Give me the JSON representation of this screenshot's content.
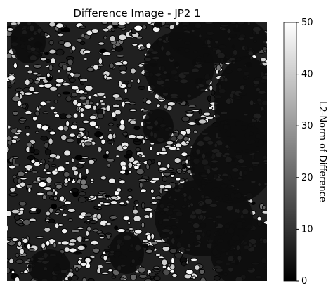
{
  "chart_data": {
    "type": "heatmap",
    "title": "Difference Image - JP2 1",
    "colormap": "gray",
    "axes_visible": false,
    "colorbar": {
      "label": "L2-Norm of Difference",
      "range": [
        0,
        50
      ],
      "ticks": [
        0,
        10,
        20,
        30,
        40,
        50
      ],
      "tick_labels": [
        "0",
        "10",
        "20",
        "30",
        "40",
        "50"
      ],
      "placement": "right"
    },
    "regions": [
      {
        "name": "dense-texture",
        "value_range": [
          0,
          50
        ]
      },
      {
        "name": "smooth-dark",
        "value_range": [
          0,
          12
        ]
      }
    ]
  }
}
